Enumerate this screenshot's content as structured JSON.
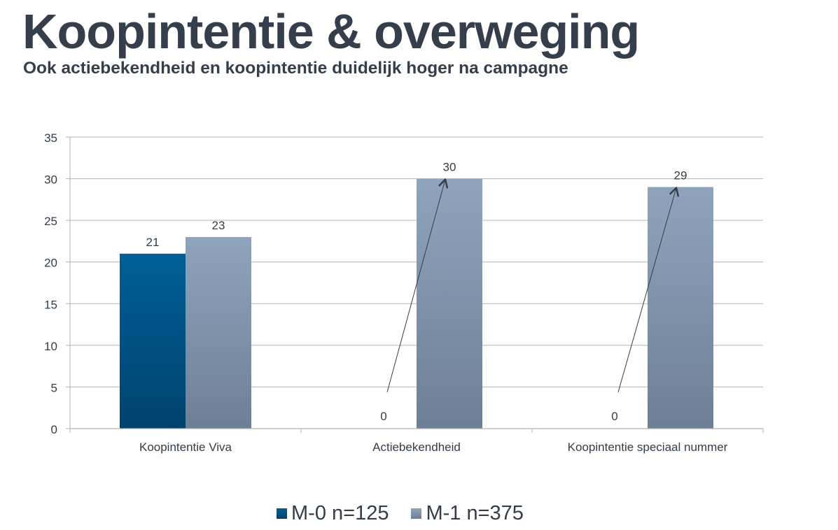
{
  "header": {
    "title": "Koopintentie & overweging",
    "subtitle": "Ook actiebekendheid en koopintentie duidelijk hoger na campagne"
  },
  "chart_data": {
    "type": "bar",
    "title": "",
    "xlabel": "",
    "ylabel": "",
    "ylim": [
      0,
      35
    ],
    "yticks": [
      0,
      5,
      10,
      15,
      20,
      25,
      30,
      35
    ],
    "grid": true,
    "categories": [
      "Koopintentie Viva",
      "Actiebekendheid",
      "Koopintentie speciaal nummer"
    ],
    "series": [
      {
        "name": "M-0 n=125",
        "values": [
          21,
          0,
          0
        ],
        "color_top": "#005f96",
        "color_bottom": "#00426e"
      },
      {
        "name": "M-1 n=375",
        "values": [
          23,
          30,
          29
        ],
        "color_top": "#8fa4bc",
        "color_bottom": "#6e7f95"
      }
    ],
    "data_labels": [
      [
        "21",
        "0",
        "0"
      ],
      [
        "23",
        "30",
        "29"
      ]
    ],
    "annotations": [
      {
        "type": "arrow",
        "from_category": "Actiebekendheid",
        "from_value": 0,
        "to_value": 30
      },
      {
        "type": "arrow",
        "from_category": "Koopintentie speciaal nummer",
        "from_value": 0,
        "to_value": 29
      }
    ],
    "legend_position": "bottom"
  }
}
